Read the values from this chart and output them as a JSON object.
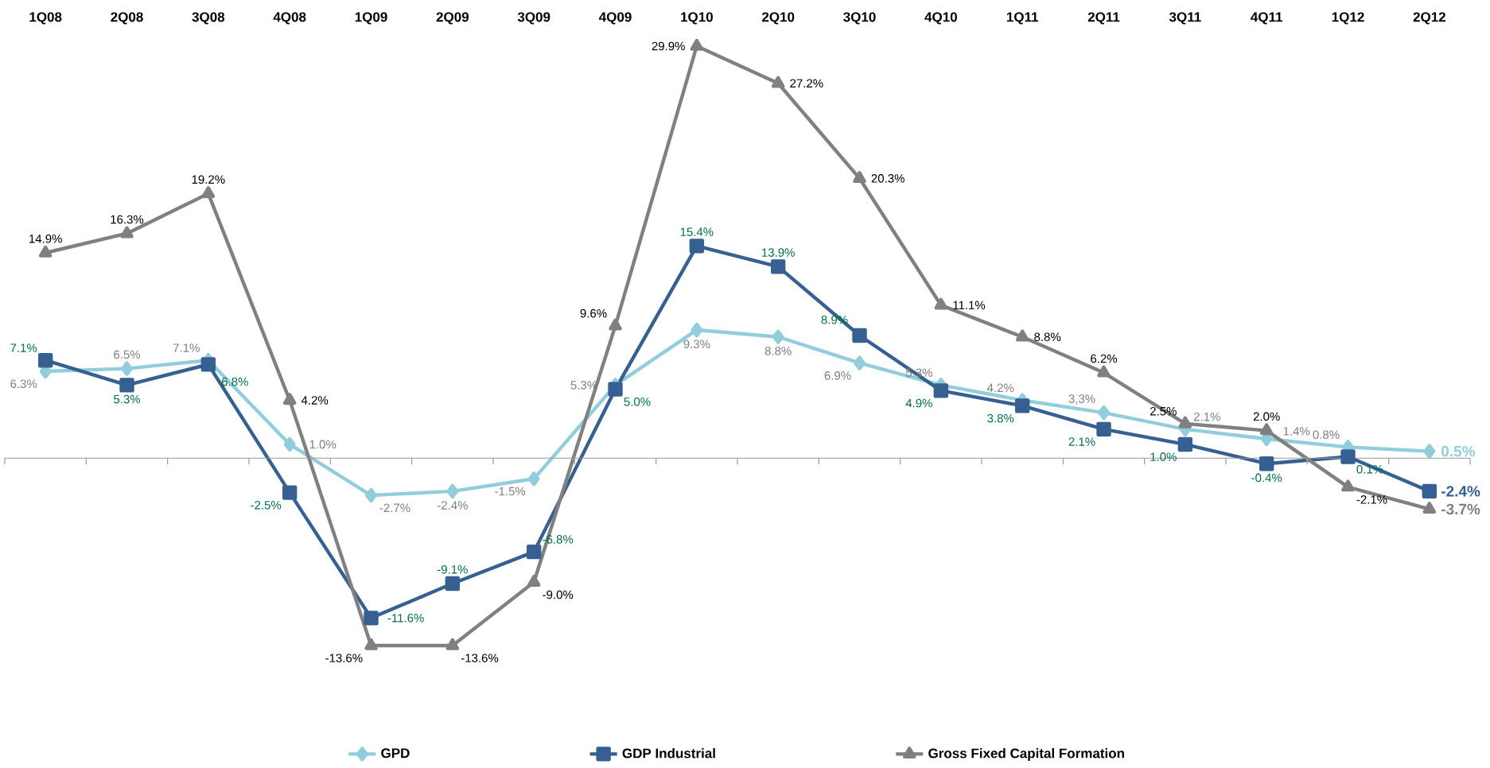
{
  "chart_data": {
    "type": "line",
    "categories": [
      "1Q08",
      "2Q08",
      "3Q08",
      "4Q08",
      "1Q09",
      "2Q09",
      "3Q09",
      "4Q09",
      "1Q10",
      "2Q10",
      "3Q10",
      "4Q10",
      "1Q11",
      "2Q11",
      "3Q11",
      "4Q11",
      "1Q12",
      "2Q12"
    ],
    "series": [
      {
        "name": "GPD",
        "color": "#92cddc",
        "marker": "diamond",
        "values": [
          6.3,
          6.5,
          7.1,
          1.0,
          -2.7,
          -2.4,
          -1.5,
          5.3,
          9.3,
          8.8,
          6.9,
          5.3,
          4.2,
          3.3,
          2.1,
          1.4,
          0.8,
          0.5
        ],
        "value_labels": [
          "6.3%",
          "6.5%",
          "7.1%",
          "1.0%",
          "-2.7%",
          "-2.4%",
          "-1.5%",
          "5.3%",
          "9.3%",
          "8.8%",
          "6.9%",
          "5.3%",
          "4.2%",
          "3,3%",
          "2.1%",
          "1.4%",
          "0.8%",
          "0.5%"
        ]
      },
      {
        "name": "GDP Industrial",
        "color": "#366092",
        "marker": "square",
        "values": [
          7.1,
          5.3,
          6.8,
          -2.5,
          -11.6,
          -9.1,
          -6.8,
          5.0,
          15.4,
          13.9,
          8.9,
          4.9,
          3.8,
          2.1,
          1.0,
          -0.4,
          0.1,
          -2.4
        ],
        "value_labels": [
          "7.1%",
          "5.3%",
          "6.8%",
          "-2.5%",
          "-11.6%",
          "-9.1%",
          "-6.8%",
          "5.0%",
          "15.4%",
          "13.9%",
          "8.9%",
          "4.9%",
          "3.8%",
          "2.1%",
          "1.0%",
          "-0.4%",
          "0.1%",
          "-2.4%"
        ]
      },
      {
        "name": "Gross Fixed Capital Formation",
        "color": "#808080",
        "marker": "triangle",
        "values": [
          14.9,
          16.3,
          19.2,
          4.2,
          -13.6,
          -13.6,
          -9.0,
          9.6,
          29.9,
          27.2,
          20.3,
          11.1,
          8.8,
          6.2,
          2.5,
          2.0,
          -2.1,
          -3.7
        ],
        "value_labels": [
          "14.9%",
          "16.3%",
          "19.2%",
          "4.2%",
          "-13.6%",
          "-13.6%",
          "-9.0%",
          "9.6%",
          "29.9%",
          "27.2%",
          "20.3%",
          "11.1%",
          "8.8%",
          "6.2%",
          "2.5%",
          "2.0%",
          "-2.1%",
          "-3.7%"
        ]
      }
    ],
    "legend": "bottom",
    "line_style": "solid"
  }
}
